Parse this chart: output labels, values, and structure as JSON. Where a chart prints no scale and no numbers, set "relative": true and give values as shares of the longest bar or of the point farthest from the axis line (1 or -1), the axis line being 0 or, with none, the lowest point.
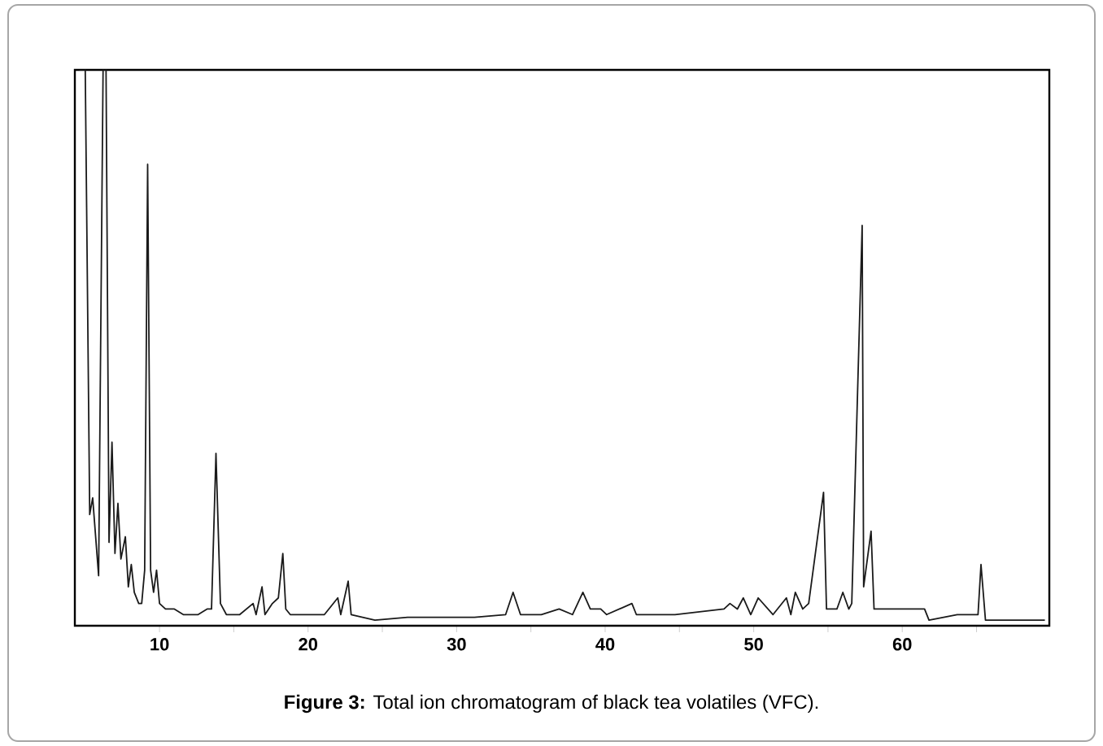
{
  "chart_data": {
    "type": "line",
    "relative": true,
    "color": "#1a1a1a",
    "x": [
      4.6,
      5.0,
      5.3,
      5.5,
      5.9,
      6.2,
      6.4,
      6.6,
      6.8,
      7.0,
      7.2,
      7.4,
      7.7,
      7.9,
      8.1,
      8.3,
      8.6,
      8.8,
      9.0,
      9.2,
      9.4,
      9.6,
      9.8,
      10.0,
      10.4,
      11.0,
      11.6,
      12.0,
      12.6,
      13.2,
      13.5,
      13.8,
      14.1,
      14.5,
      15.4,
      16.3,
      16.5,
      16.9,
      17.1,
      17.6,
      18.0,
      18.3,
      18.5,
      18.8,
      21.1,
      22.0,
      22.2,
      22.7,
      22.9,
      24.5,
      26.7,
      29.0,
      31.2,
      33.3,
      33.8,
      34.3,
      35.7,
      36.9,
      37.8,
      38.5,
      39.0,
      39.7,
      40.1,
      41.8,
      42.1,
      44.7,
      48.0,
      48.4,
      48.9,
      49.3,
      49.8,
      50.3,
      51.3,
      52.2,
      52.5,
      52.8,
      53.3,
      53.7,
      54.7,
      54.9,
      55.6,
      56.0,
      56.4,
      56.6,
      57.3,
      57.4,
      57.9,
      58.1,
      59.2,
      61.5,
      61.8,
      63.7,
      65.1,
      65.3,
      65.6,
      68.5,
      69.6
    ],
    "values": [
      1,
      1,
      0.2,
      0.23,
      0.09,
      1,
      1,
      0.15,
      0.33,
      0.13,
      0.22,
      0.12,
      0.16,
      0.07,
      0.11,
      0.06,
      0.04,
      0.04,
      0.1,
      0.83,
      0.1,
      0.06,
      0.1,
      0.04,
      0.03,
      0.03,
      0.02,
      0.02,
      0.02,
      0.03,
      0.03,
      0.31,
      0.04,
      0.02,
      0.02,
      0.04,
      0.02,
      0.07,
      0.02,
      0.04,
      0.05,
      0.13,
      0.03,
      0.02,
      0.02,
      0.05,
      0.02,
      0.08,
      0.02,
      0.01,
      0.015,
      0.015,
      0.015,
      0.02,
      0.06,
      0.02,
      0.02,
      0.03,
      0.02,
      0.06,
      0.03,
      0.03,
      0.02,
      0.04,
      0.02,
      0.02,
      0.03,
      0.04,
      0.03,
      0.05,
      0.02,
      0.05,
      0.02,
      0.05,
      0.02,
      0.06,
      0.03,
      0.04,
      0.24,
      0.03,
      0.03,
      0.06,
      0.03,
      0.04,
      0.72,
      0.07,
      0.17,
      0.03,
      0.03,
      0.03,
      0.01,
      0.02,
      0.02,
      0.11,
      0.01,
      0.01,
      0.01
    ],
    "xlim": [
      4.3,
      69.9
    ],
    "xticks": [
      10,
      {
        "value": 15,
        "label": null
      },
      20,
      {
        "value": 25,
        "label": null
      },
      30,
      {
        "value": 35,
        "label": null
      },
      40,
      {
        "value": 45,
        "label": null
      },
      50,
      {
        "value": 55,
        "label": null
      },
      60,
      {
        "value": 65,
        "label": null
      }
    ],
    "annotations": [
      "**Figure 3:** Total ion chromatogram of black tea volatiles (VFC)."
    ]
  }
}
